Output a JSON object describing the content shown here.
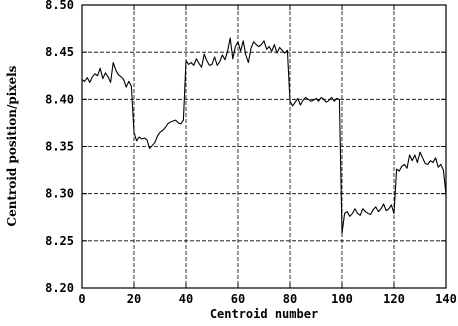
{
  "chart_data": {
    "type": "line",
    "xlabel": "Centroid number",
    "ylabel": "Centroid position/pixels",
    "xlim": [
      0,
      140
    ],
    "ylim": [
      8.2,
      8.5
    ],
    "xticks": [
      0,
      20,
      40,
      60,
      80,
      100,
      120,
      140
    ],
    "yticks": [
      8.2,
      8.25,
      8.3,
      8.35,
      8.4,
      8.45,
      8.5
    ],
    "xtick_labels": [
      "0",
      "20",
      "40",
      "60",
      "80",
      "100",
      "120",
      "140"
    ],
    "ytick_labels": [
      "8.20",
      "8.25",
      "8.30",
      "8.35",
      "8.40",
      "8.45",
      "8.50"
    ],
    "grid": true,
    "series": [
      {
        "x": [
          0,
          1,
          2,
          3,
          4,
          5,
          6,
          7,
          8,
          9,
          10,
          11,
          12,
          13,
          14,
          15,
          16,
          17,
          18,
          19,
          20,
          21,
          22,
          23,
          24,
          25,
          26,
          27,
          28,
          29,
          30,
          31,
          32,
          33,
          34,
          35,
          36,
          37,
          38,
          39,
          40,
          41,
          42,
          43,
          44,
          45,
          46,
          47,
          48,
          49,
          50,
          51,
          52,
          53,
          54,
          55,
          56,
          57,
          58,
          59,
          60,
          61,
          62,
          63,
          64,
          65,
          66,
          67,
          68,
          69,
          70,
          71,
          72,
          73,
          74,
          75,
          76,
          77,
          78,
          79,
          80,
          81,
          82,
          83,
          84,
          85,
          86,
          87,
          88,
          89,
          90,
          91,
          92,
          93,
          94,
          95,
          96,
          97,
          98,
          99,
          100,
          101,
          102,
          103,
          104,
          105,
          106,
          107,
          108,
          109,
          110,
          111,
          112,
          113,
          114,
          115,
          116,
          117,
          118,
          119,
          120,
          121,
          122,
          123,
          124,
          125,
          126,
          127,
          128,
          129,
          130,
          131,
          132,
          133,
          134,
          135,
          136,
          137,
          138,
          139,
          140
        ],
        "y": [
          8.421,
          8.419,
          8.423,
          8.418,
          8.424,
          8.427,
          8.425,
          8.433,
          8.422,
          8.428,
          8.424,
          8.418,
          8.439,
          8.431,
          8.426,
          8.424,
          8.421,
          8.413,
          8.419,
          8.414,
          8.365,
          8.356,
          8.36,
          8.358,
          8.359,
          8.357,
          8.348,
          8.351,
          8.354,
          8.361,
          8.365,
          8.367,
          8.37,
          8.374,
          8.376,
          8.377,
          8.378,
          8.375,
          8.374,
          8.378,
          8.441,
          8.437,
          8.439,
          8.436,
          8.443,
          8.438,
          8.434,
          8.448,
          8.441,
          8.436,
          8.437,
          8.445,
          8.436,
          8.44,
          8.447,
          8.442,
          8.451,
          8.465,
          8.443,
          8.456,
          8.461,
          8.451,
          8.462,
          8.447,
          8.439,
          8.454,
          8.461,
          8.458,
          8.456,
          8.458,
          8.462,
          8.453,
          8.456,
          8.451,
          8.458,
          8.449,
          8.455,
          8.452,
          8.449,
          8.452,
          8.398,
          8.393,
          8.397,
          8.401,
          8.394,
          8.399,
          8.402,
          8.4,
          8.398,
          8.399,
          8.401,
          8.398,
          8.402,
          8.4,
          8.397,
          8.399,
          8.402,
          8.398,
          8.401,
          8.4,
          8.258,
          8.279,
          8.281,
          8.276,
          8.279,
          8.284,
          8.279,
          8.277,
          8.284,
          8.281,
          8.279,
          8.278,
          8.283,
          8.286,
          8.281,
          8.284,
          8.289,
          8.282,
          8.284,
          8.288,
          8.279,
          8.326,
          8.324,
          8.329,
          8.331,
          8.327,
          8.341,
          8.335,
          8.341,
          8.333,
          8.344,
          8.338,
          8.332,
          8.331,
          8.335,
          8.333,
          8.338,
          8.328,
          8.331,
          8.325,
          8.299
        ]
      }
    ]
  }
}
